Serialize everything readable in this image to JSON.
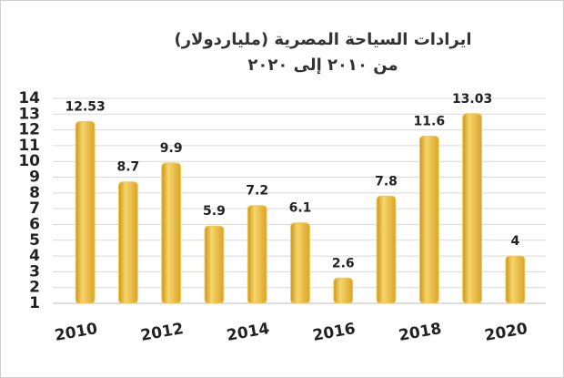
{
  "chart_data": {
    "type": "bar",
    "title": "ايرادات السياحة المصرية (ملياردولار)",
    "subtitle": "من ٢٠١٠ إلى ٢٠٢٠",
    "categories": [
      "2010",
      null,
      "2012",
      null,
      "2014",
      null,
      "2016",
      null,
      "2018",
      null,
      "2020"
    ],
    "values": [
      12.53,
      8.7,
      9.9,
      5.9,
      7.2,
      6.1,
      2.6,
      7.8,
      11.6,
      13.03,
      4
    ],
    "color": "#f2c94c",
    "ylim": [
      1,
      14
    ],
    "yticks": [
      1,
      2,
      3,
      4,
      5,
      6,
      7,
      8,
      9,
      10,
      11,
      12,
      13,
      14
    ],
    "grid": true
  }
}
